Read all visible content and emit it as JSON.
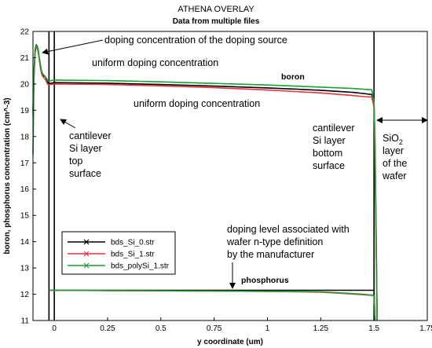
{
  "chart_data": {
    "type": "line",
    "title": "ATHENA OVERLAY",
    "subtitle": "Data from multiple files",
    "xlabel": "y coordinate (um)",
    "ylabel": "boron, phosphorus concentration (cm^-3)",
    "xlim": [
      -0.1,
      1.75
    ],
    "ylim": [
      11,
      22
    ],
    "xticks": [
      "0",
      "0.25",
      "0.5",
      "0.75",
      "1",
      "1.25",
      "1.5",
      "1.75"
    ],
    "xtick_values": [
      0,
      0.25,
      0.5,
      0.75,
      1,
      1.25,
      1.5,
      1.75
    ],
    "yticks": [
      "11",
      "12",
      "13",
      "14",
      "15",
      "16",
      "17",
      "18",
      "19",
      "20",
      "21",
      "22"
    ],
    "ytick_values": [
      11,
      12,
      13,
      14,
      15,
      16,
      17,
      18,
      19,
      20,
      21,
      22
    ],
    "grid": false,
    "legend_position": "lower-left",
    "series": [
      {
        "name": "bds_Si_0.str",
        "color": "#000000",
        "x": [
          -0.1,
          -0.095,
          -0.09,
          -0.085,
          -0.08,
          -0.075,
          -0.07,
          -0.065,
          -0.06,
          -0.055,
          -0.05,
          -0.045,
          -0.04,
          -0.035,
          -0.03,
          -0.025,
          -0.02,
          0.0,
          0.25,
          0.5,
          0.75,
          1.0,
          1.25,
          1.4,
          1.45,
          1.49,
          1.5,
          1.505,
          1.51,
          1.515
        ],
        "y": [
          19.0,
          20.4,
          21.2,
          21.45,
          21.4,
          21.2,
          20.95,
          20.65,
          20.45,
          20.35,
          20.3,
          20.3,
          20.25,
          20.15,
          20.05,
          20.02,
          20.02,
          20.05,
          20.03,
          19.98,
          19.92,
          19.85,
          19.76,
          19.68,
          19.64,
          19.6,
          19.2,
          17.5,
          14.0,
          11.0
        ]
      },
      {
        "name": "bds_Si_1.str",
        "color": "#e8323c",
        "x": [
          -0.1,
          -0.095,
          -0.09,
          -0.085,
          -0.08,
          -0.075,
          -0.07,
          -0.065,
          -0.06,
          -0.055,
          -0.05,
          -0.045,
          -0.04,
          -0.035,
          -0.03,
          -0.025,
          -0.02,
          0.0,
          0.25,
          0.5,
          0.75,
          1.0,
          1.25,
          1.4,
          1.45,
          1.49,
          1.5,
          1.505,
          1.51,
          1.515
        ],
        "y": [
          18.8,
          20.6,
          21.3,
          21.5,
          21.4,
          21.2,
          20.9,
          20.6,
          20.4,
          20.3,
          20.25,
          20.2,
          20.15,
          20.05,
          19.98,
          19.97,
          19.98,
          20.0,
          19.98,
          19.93,
          19.86,
          19.77,
          19.66,
          19.56,
          19.52,
          19.5,
          19.1,
          17.0,
          13.5,
          11.0
        ]
      },
      {
        "name": "bds_polySi_1.str",
        "color": "#1aa033",
        "x": [
          -0.1,
          -0.095,
          -0.09,
          -0.085,
          -0.08,
          -0.075,
          -0.07,
          -0.065,
          -0.06,
          -0.055,
          -0.05,
          -0.045,
          -0.04,
          -0.035,
          -0.03,
          -0.025,
          -0.02,
          0.0,
          0.25,
          0.5,
          0.75,
          1.0,
          1.25,
          1.4,
          1.45,
          1.49,
          1.5,
          1.505,
          1.51,
          1.515
        ],
        "y": [
          17.3,
          20.5,
          21.3,
          21.5,
          21.45,
          21.3,
          21.0,
          20.75,
          20.5,
          20.4,
          20.35,
          20.3,
          20.25,
          20.2,
          20.12,
          20.1,
          20.12,
          20.15,
          20.13,
          20.08,
          20.02,
          19.96,
          19.88,
          19.83,
          19.8,
          19.78,
          19.3,
          17.8,
          14.5,
          11.0
        ]
      }
    ],
    "phosphorus_series": [
      {
        "name": "bds_Si_0.str",
        "color": "#000000",
        "x": [
          -0.02,
          0.25,
          0.5,
          0.75,
          1.0,
          1.25,
          1.5,
          1.505
        ],
        "y": [
          12.15,
          12.15,
          12.15,
          12.15,
          12.15,
          12.15,
          12.15,
          11.0
        ]
      },
      {
        "name": "bds_Si_1.str",
        "color": "#e8323c",
        "x": [
          -0.02,
          0.25,
          0.5,
          0.75,
          1.0,
          1.25,
          1.35,
          1.45,
          1.5,
          1.505
        ],
        "y": [
          12.15,
          12.14,
          12.13,
          12.12,
          12.11,
          12.08,
          12.03,
          11.98,
          11.95,
          11.0
        ]
      },
      {
        "name": "bds_polySi_1.str",
        "color": "#1aa033",
        "x": [
          -0.02,
          0.25,
          0.5,
          0.75,
          1.0,
          1.25,
          1.35,
          1.45,
          1.5,
          1.505
        ],
        "y": [
          12.15,
          12.14,
          12.13,
          12.12,
          12.11,
          12.09,
          12.05,
          12.0,
          11.96,
          11.0
        ]
      }
    ],
    "vertical_lines_x": [
      -0.025,
      0.0,
      1.5
    ],
    "series_labels": {
      "boron": "boron",
      "phosphorus": "phosphorus"
    },
    "annotations": {
      "source_doping": "doping concentration of the doping source",
      "uniform_top": "uniform doping concentration",
      "uniform_bottom": "uniform doping concentration",
      "cantilever_top_1": "cantilever",
      "cantilever_top_2": "Si layer",
      "cantilever_top_3": "top",
      "cantilever_top_4": "surface",
      "cantilever_bottom_1": "cantilever",
      "cantilever_bottom_2": "Si layer",
      "cantilever_bottom_3": "bottom",
      "cantilever_bottom_4": "surface",
      "sio2_main": "SiO",
      "sio2_sub": "2",
      "sio2_2": "layer",
      "sio2_3": "of the",
      "sio2_4": "wafer",
      "wafer_1": "doping level associated with",
      "wafer_2": "wafer n-type definition",
      "wafer_3": "by the manufacturer"
    }
  }
}
